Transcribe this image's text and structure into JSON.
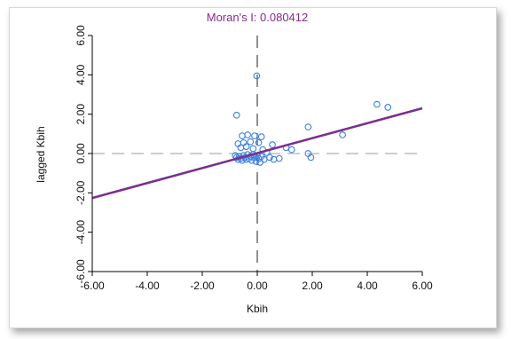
{
  "chart_data": {
    "type": "scatter",
    "title": "Moran's I: 0.080412",
    "xlabel": "Kbih",
    "ylabel": "lagged Kbih",
    "xlim": [
      -6.0,
      6.0
    ],
    "ylim": [
      -6.0,
      6.0
    ],
    "x_ticks": [
      "-6.00",
      "-4.00",
      "-2.00",
      "0.00",
      "2.00",
      "4.00",
      "6.00"
    ],
    "y_ticks": [
      "-6.00",
      "-4.00",
      "-2.00",
      "0.00",
      "2.00",
      "4.00",
      "6.00"
    ],
    "grid": false,
    "regression_line": {
      "slope": 0.38,
      "intercept": 0.02
    },
    "reference_lines": {
      "x": 0,
      "y": 0
    },
    "colors": {
      "points": "#3d7fe0",
      "line": "#7b2f8f",
      "reference": "#bdbdbd",
      "axis": "#000000"
    },
    "points": [
      {
        "x": -0.02,
        "y": 3.95
      },
      {
        "x": -0.75,
        "y": 1.95
      },
      {
        "x": -0.55,
        "y": 0.9
      },
      {
        "x": -0.35,
        "y": 0.95
      },
      {
        "x": -0.1,
        "y": 0.9
      },
      {
        "x": 0.15,
        "y": 0.85
      },
      {
        "x": -0.7,
        "y": 0.5
      },
      {
        "x": -0.5,
        "y": 0.55
      },
      {
        "x": -0.25,
        "y": 0.6
      },
      {
        "x": 0.05,
        "y": 0.55
      },
      {
        "x": -0.6,
        "y": 0.3
      },
      {
        "x": -0.4,
        "y": 0.35
      },
      {
        "x": -0.15,
        "y": 0.25
      },
      {
        "x": 0.2,
        "y": 0.2
      },
      {
        "x": -0.8,
        "y": -0.1
      },
      {
        "x": -0.75,
        "y": -0.2
      },
      {
        "x": -0.7,
        "y": -0.3
      },
      {
        "x": -0.65,
        "y": -0.15
      },
      {
        "x": -0.6,
        "y": -0.25
      },
      {
        "x": -0.55,
        "y": -0.35
      },
      {
        "x": -0.5,
        "y": -0.1
      },
      {
        "x": -0.45,
        "y": -0.2
      },
      {
        "x": -0.4,
        "y": -0.3
      },
      {
        "x": -0.35,
        "y": -0.05
      },
      {
        "x": -0.3,
        "y": -0.25
      },
      {
        "x": -0.25,
        "y": -0.15
      },
      {
        "x": -0.2,
        "y": -0.35
      },
      {
        "x": -0.15,
        "y": -0.05
      },
      {
        "x": -0.1,
        "y": -0.2
      },
      {
        "x": -0.05,
        "y": -0.4
      },
      {
        "x": 0.0,
        "y": -0.1
      },
      {
        "x": 0.05,
        "y": -0.25
      },
      {
        "x": 0.1,
        "y": -0.45
      },
      {
        "x": 0.15,
        "y": -0.15
      },
      {
        "x": 0.25,
        "y": -0.3
      },
      {
        "x": 0.35,
        "y": 0.05
      },
      {
        "x": 0.45,
        "y": -0.2
      },
      {
        "x": 0.6,
        "y": -0.3
      },
      {
        "x": 0.8,
        "y": -0.25
      },
      {
        "x": 0.55,
        "y": 0.45
      },
      {
        "x": 1.25,
        "y": 0.2
      },
      {
        "x": 1.05,
        "y": 0.3
      },
      {
        "x": 1.85,
        "y": 1.35
      },
      {
        "x": 1.85,
        "y": 0.0
      },
      {
        "x": 1.95,
        "y": -0.2
      },
      {
        "x": 3.1,
        "y": 0.95
      },
      {
        "x": 4.35,
        "y": 2.5
      },
      {
        "x": 4.75,
        "y": 2.35
      }
    ]
  }
}
